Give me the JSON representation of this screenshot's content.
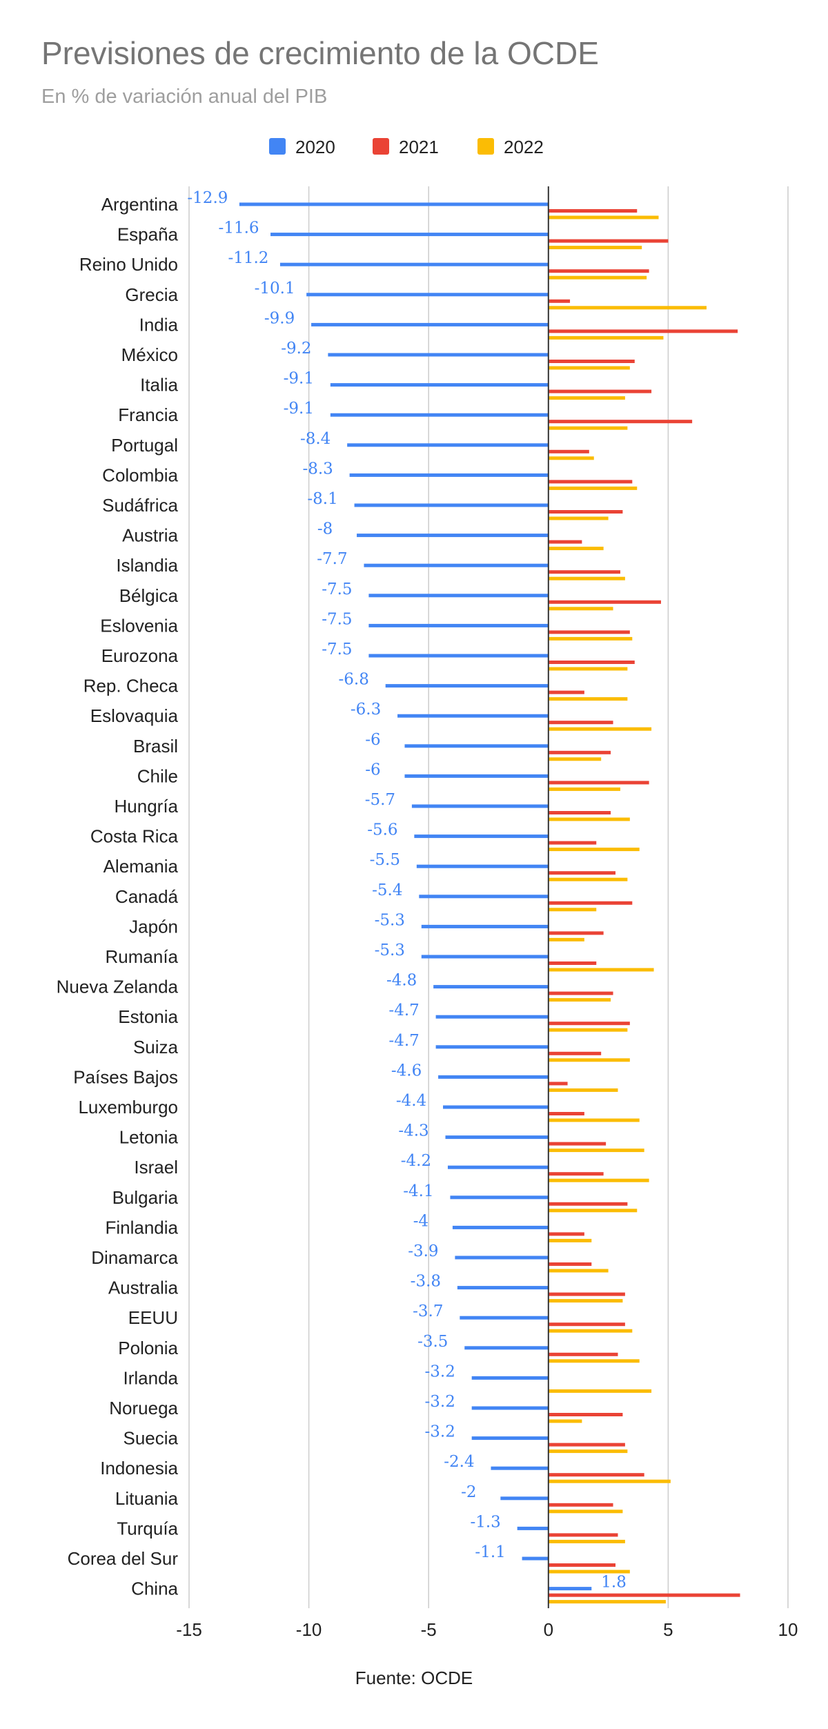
{
  "title": "Previsiones de crecimiento de la OCDE",
  "subtitle": "En % de variación anual del PIB",
  "source": "Fuente: OCDE",
  "colors": {
    "s2020": "#4285f4",
    "s2021": "#ea4335",
    "s2022": "#fbbc04",
    "grid": "#cccccc",
    "axis": "#333333"
  },
  "chart_data": {
    "type": "bar",
    "orientation": "horizontal",
    "legend_position": "top",
    "grid": true,
    "xlim": [
      -15,
      10
    ],
    "x_ticks": [
      -15,
      -10,
      -5,
      0,
      5,
      10
    ],
    "data_labels_series": "2020",
    "categories": [
      "Argentina",
      "España",
      "Reino Unido",
      "Grecia",
      "India",
      "México",
      "Italia",
      "Francia",
      "Portugal",
      "Colombia",
      "Sudáfrica",
      "Austria",
      "Islandia",
      "Bélgica",
      "Eslovenia",
      "Eurozona",
      "Rep. Checa",
      "Eslovaquia",
      "Brasil",
      "Chile",
      "Hungría",
      "Costa Rica",
      "Alemania",
      "Canadá",
      "Japón",
      "Rumanía",
      "Nueva Zelanda",
      "Estonia",
      "Suiza",
      "Países Bajos",
      "Luxemburgo",
      "Letonia",
      "Israel",
      "Bulgaria",
      "Finlandia",
      "Dinamarca",
      "Australia",
      "EEUU",
      "Polonia",
      "Irlanda",
      "Noruega",
      "Suecia",
      "Indonesia",
      "Lituania",
      "Turquía",
      "Corea del Sur",
      "China"
    ],
    "series": [
      {
        "name": "2020",
        "values": [
          -12.9,
          -11.6,
          -11.2,
          -10.1,
          -9.9,
          -9.2,
          -9.1,
          -9.1,
          -8.4,
          -8.3,
          -8.1,
          -8,
          -7.7,
          -7.5,
          -7.5,
          -7.5,
          -6.8,
          -6.3,
          -6,
          -6,
          -5.7,
          -5.6,
          -5.5,
          -5.4,
          -5.3,
          -5.3,
          -4.8,
          -4.7,
          -4.7,
          -4.6,
          -4.4,
          -4.3,
          -4.2,
          -4.1,
          -4,
          -3.9,
          -3.8,
          -3.7,
          -3.5,
          -3.2,
          -3.2,
          -3.2,
          -2.4,
          -2,
          -1.3,
          -1.1,
          1.8
        ]
      },
      {
        "name": "2021",
        "values": [
          3.7,
          5.0,
          4.2,
          0.9,
          7.9,
          3.6,
          4.3,
          6.0,
          1.7,
          3.5,
          3.1,
          1.4,
          3.0,
          4.7,
          3.4,
          3.6,
          1.5,
          2.7,
          2.6,
          4.2,
          2.6,
          2.0,
          2.8,
          3.5,
          2.3,
          2.0,
          2.7,
          3.4,
          2.2,
          0.8,
          1.5,
          2.4,
          2.3,
          3.3,
          1.5,
          1.8,
          3.2,
          3.2,
          2.9,
          0.0,
          3.1,
          3.2,
          4.0,
          2.7,
          2.9,
          2.8,
          8.0
        ]
      },
      {
        "name": "2022",
        "values": [
          4.6,
          3.9,
          4.1,
          6.6,
          4.8,
          3.4,
          3.2,
          3.3,
          1.9,
          3.7,
          2.5,
          2.3,
          3.2,
          2.7,
          3.5,
          3.3,
          3.3,
          4.3,
          2.2,
          3.0,
          3.4,
          3.8,
          3.3,
          2.0,
          1.5,
          4.4,
          2.6,
          3.3,
          3.4,
          2.9,
          3.8,
          4.0,
          4.2,
          3.7,
          1.8,
          2.5,
          3.1,
          3.5,
          3.8,
          4.3,
          1.4,
          3.3,
          5.1,
          3.1,
          3.2,
          3.4,
          4.9
        ]
      }
    ]
  }
}
